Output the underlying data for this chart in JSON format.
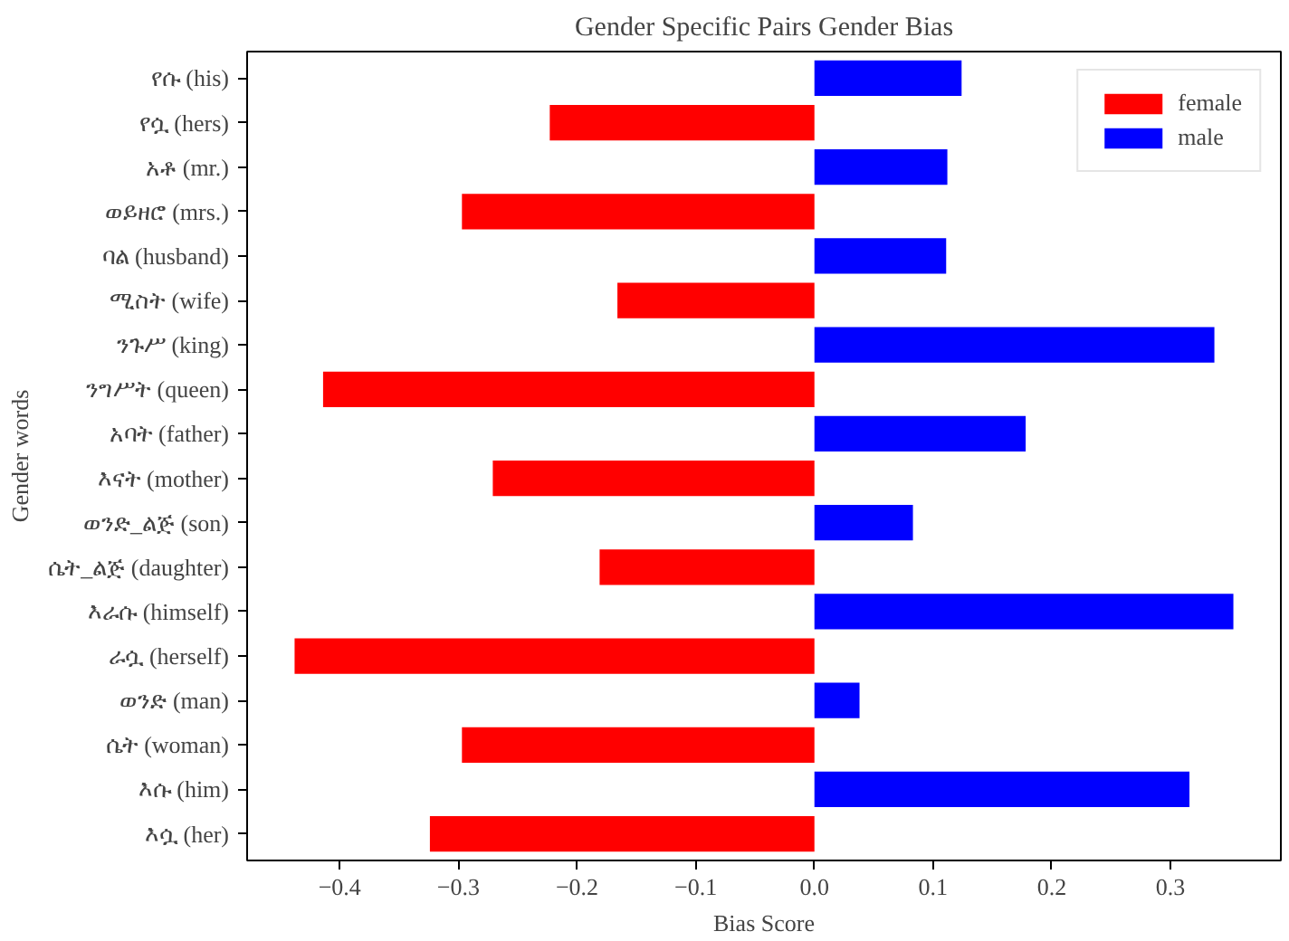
{
  "chart_data": {
    "type": "bar",
    "orientation": "horizontal",
    "title": "Gender Specific Pairs Gender Bias",
    "xlabel": "Bias Score",
    "ylabel": "Gender words",
    "categories": [
      "የሱ (his)",
      "የሷ (hers)",
      "አቶ (mr.)",
      "ወይዘሮ (mrs.)",
      "ባል (husband)",
      "ሚስት (wife)",
      "ንጉሥ (king)",
      "ንግሥት (queen)",
      "አባት (father)",
      "እናት (mother)",
      "ወንድ_ልጅ (son)",
      "ሴት_ልጅ (daughter)",
      "እራሱ (himself)",
      "ራሷ (herself)",
      "ወንድ (man)",
      "ሴት (woman)",
      "እሱ (him)",
      "እሷ (her)"
    ],
    "series": [
      {
        "name": "female",
        "color": "#ff0000",
        "values": [
          null,
          -0.223,
          null,
          -0.297,
          null,
          -0.166,
          null,
          -0.414,
          null,
          -0.271,
          null,
          -0.181,
          null,
          -0.438,
          null,
          -0.297,
          null,
          -0.324
        ]
      },
      {
        "name": "male",
        "color": "#0000ff",
        "values": [
          0.124,
          null,
          0.112,
          null,
          0.111,
          null,
          0.337,
          null,
          0.178,
          null,
          0.083,
          null,
          0.353,
          null,
          0.038,
          null,
          0.316,
          null
        ]
      }
    ],
    "xlim": [
      -0.478,
      0.393
    ],
    "xticks": [
      {
        "value": -0.4,
        "label": "−0.4"
      },
      {
        "value": -0.3,
        "label": "−0.3"
      },
      {
        "value": -0.2,
        "label": "−0.2"
      },
      {
        "value": -0.1,
        "label": "−0.1"
      },
      {
        "value": 0,
        "label": "0.0"
      },
      {
        "value": 0.1,
        "label": "0.1"
      },
      {
        "value": 0.2,
        "label": "0.2"
      },
      {
        "value": 0.3,
        "label": "0.3"
      }
    ],
    "grid": false,
    "legend": "top right"
  }
}
